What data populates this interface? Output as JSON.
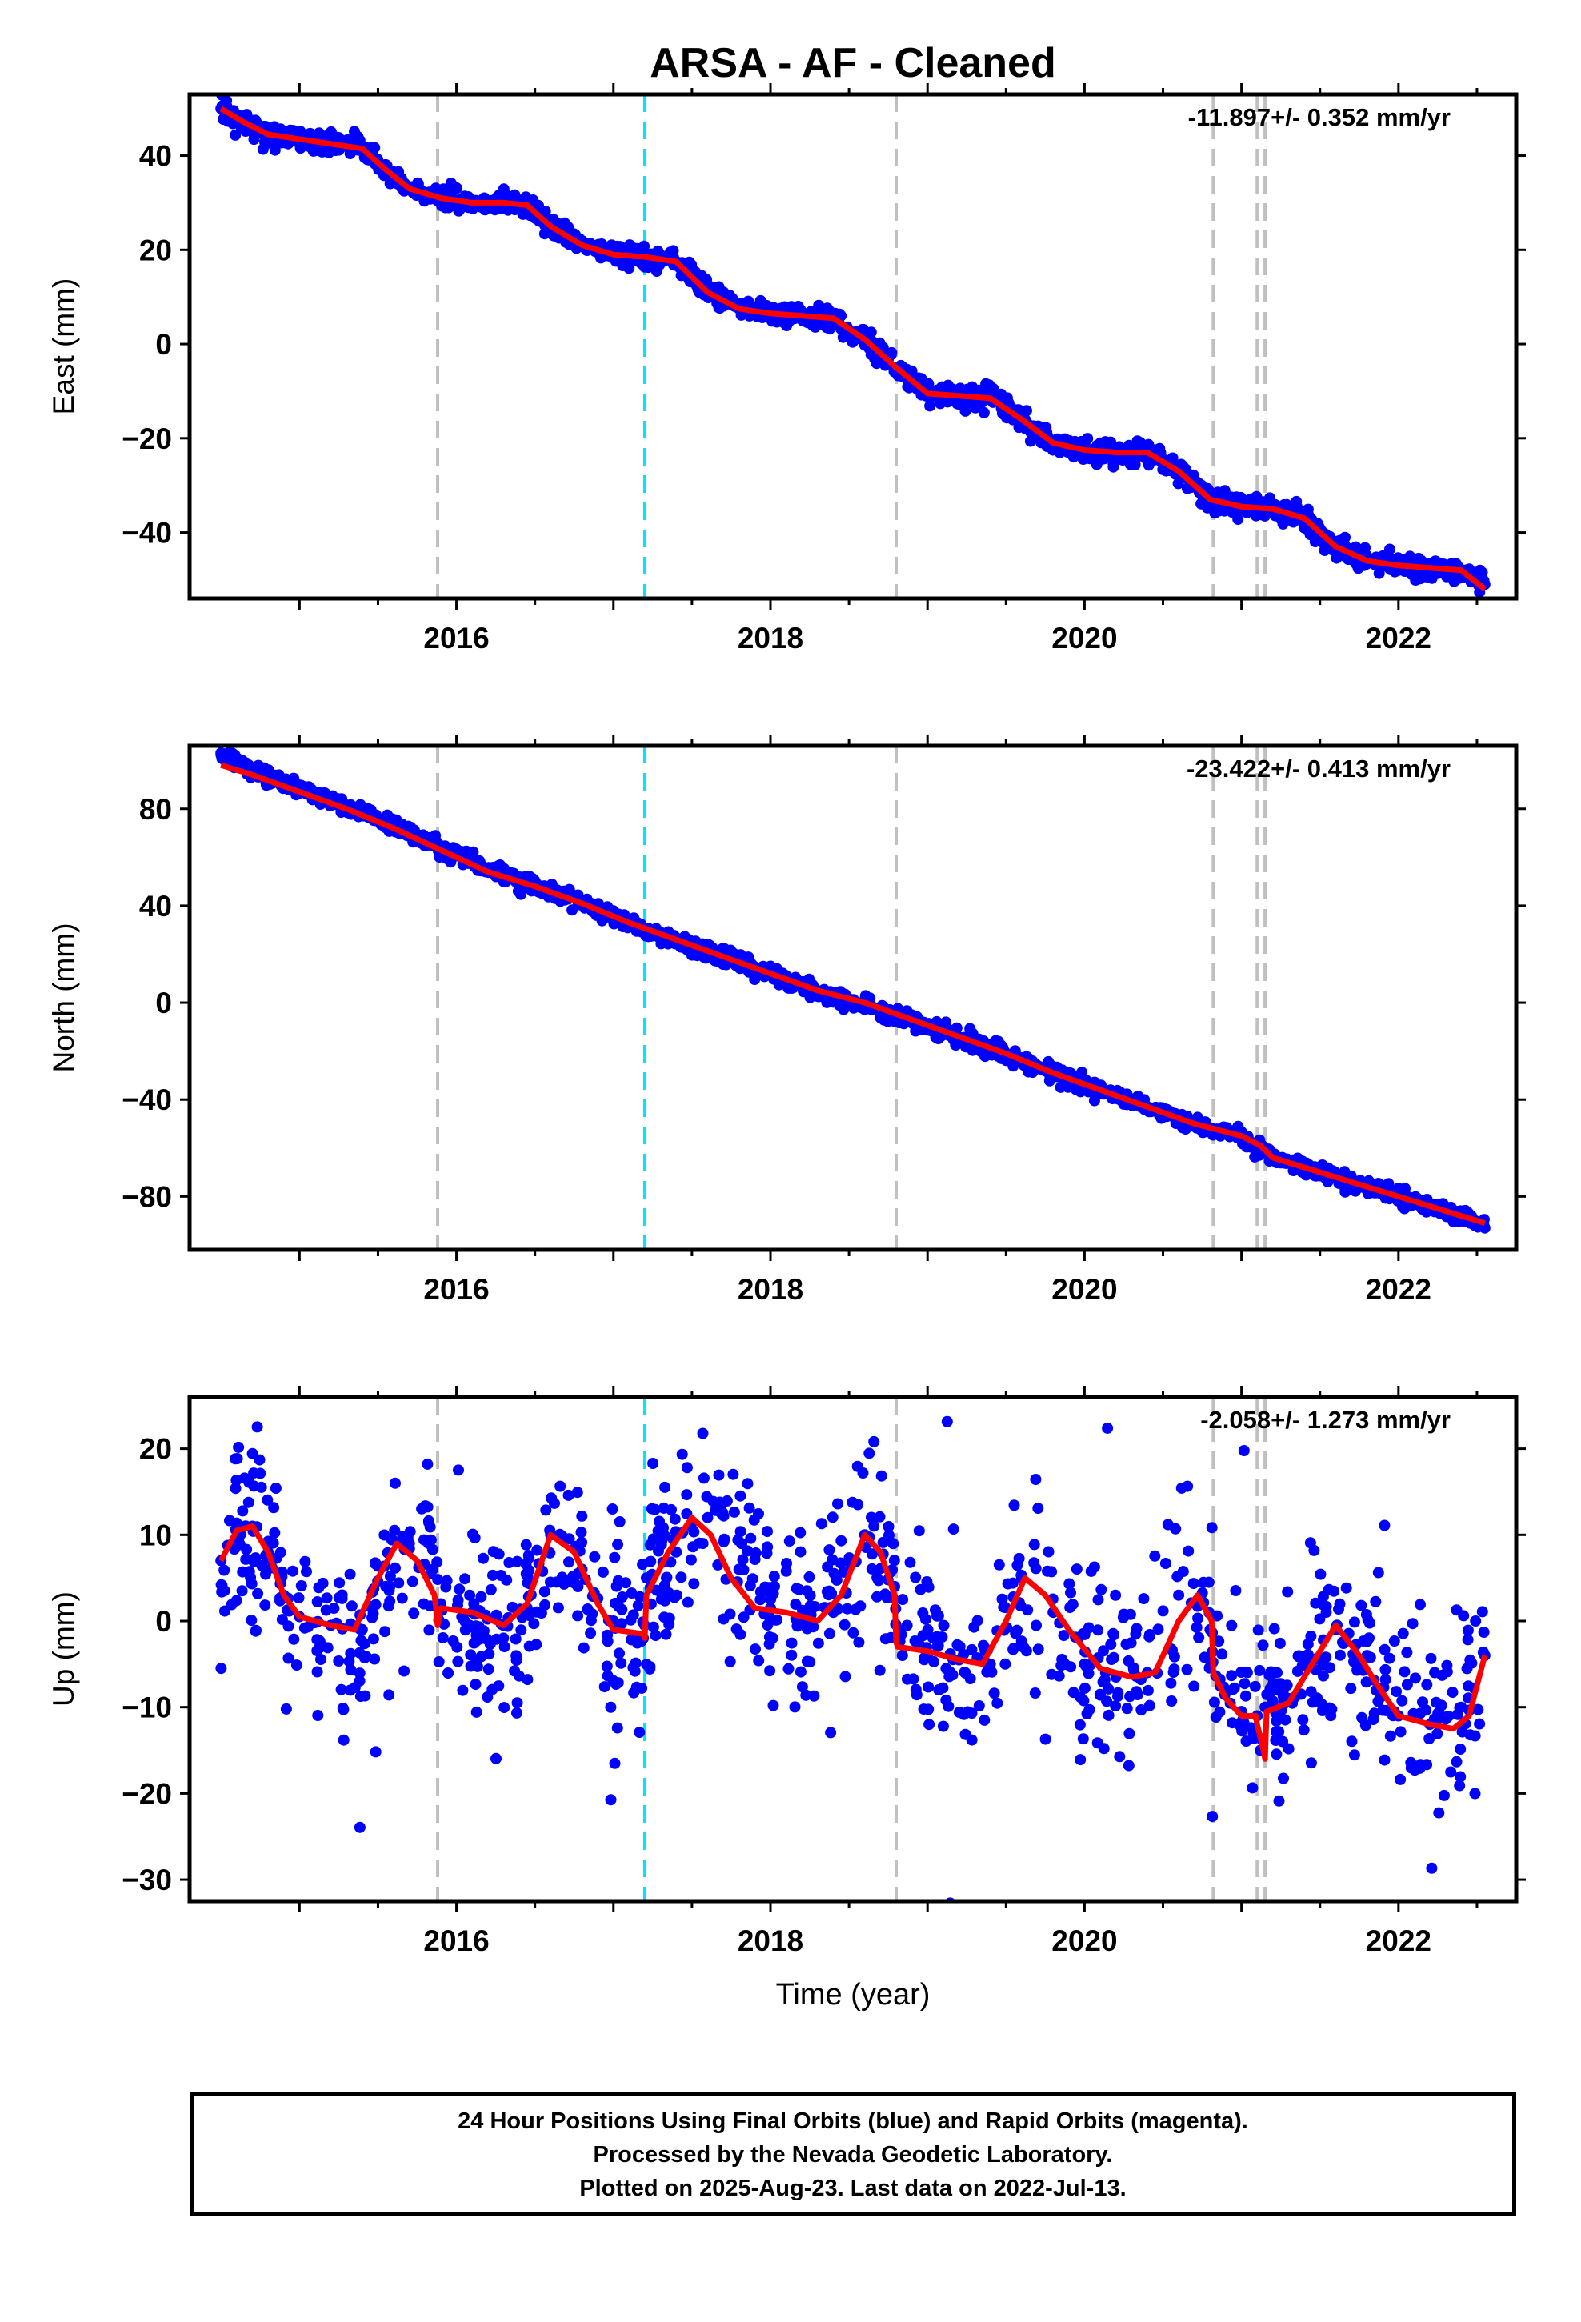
{
  "title": "ARSA  - AF - Cleaned",
  "xlabel": "Time (year)",
  "caption": [
    "24 Hour Positions Using Final Orbits (blue) and Rapid Orbits (magenta).",
    "Processed by the Nevada Geodetic Laboratory.",
    "Plotted on 2025-Aug-23. Last data on 2022-Jul-13."
  ],
  "colors": {
    "points": "#0000ff",
    "fit": "#ff0000",
    "equipment_change": "#c0c0c0",
    "earthquake": "#00e5ff",
    "frame": "#000000"
  },
  "chart_data": [
    {
      "type": "scatter",
      "ylabel": "East (mm)",
      "rate_label": "-11.897+/- 0.352 mm/yr",
      "xlim": [
        2014.3,
        2022.75
      ],
      "ylim": [
        -54,
        53
      ],
      "xticks": [
        2016,
        2018,
        2020,
        2022
      ],
      "yticks": [
        -40,
        -20,
        0,
        20,
        40
      ],
      "ytick_labels": [
        "−40",
        "−20",
        "0",
        "20",
        "40"
      ],
      "grey_lines": [
        2015.88,
        2018.8,
        2020.82,
        2021.1,
        2021.15
      ],
      "cyan_lines": [
        2017.2
      ],
      "series": [
        {
          "kind": "points",
          "x": [
            2014.5,
            2014.65,
            2014.8,
            2015.0,
            2015.2,
            2015.4,
            2015.55,
            2015.7,
            2015.9,
            2016.1,
            2016.3,
            2016.45,
            2016.6,
            2016.8,
            2017.0,
            2017.2,
            2017.4,
            2017.6,
            2017.8,
            2018.0,
            2018.2,
            2018.4,
            2018.6,
            2018.8,
            2019.0,
            2019.2,
            2019.4,
            2019.6,
            2019.8,
            2020.0,
            2020.2,
            2020.4,
            2020.6,
            2020.8,
            2021.0,
            2021.2,
            2021.4,
            2021.6,
            2021.8,
            2022.0,
            2022.2,
            2022.4,
            2022.55
          ],
          "y": [
            50,
            47,
            44.5,
            43.5,
            42.5,
            41.5,
            37,
            33,
            31,
            30,
            30,
            29.5,
            25,
            21,
            19,
            18.5,
            17.5,
            11,
            7.5,
            6.5,
            6,
            5.5,
            1,
            -5,
            -10.5,
            -11,
            -11.5,
            -16,
            -21,
            -22.5,
            -23,
            -23,
            -27,
            -33,
            -34.5,
            -35,
            -37,
            -43,
            -46,
            -47,
            -47.5,
            -48,
            -51
          ]
        },
        {
          "kind": "line",
          "x": [
            2014.5,
            2014.65,
            2014.8,
            2015.0,
            2015.2,
            2015.4,
            2015.55,
            2015.7,
            2015.9,
            2016.1,
            2016.3,
            2016.45,
            2016.6,
            2016.8,
            2017.0,
            2017.2,
            2017.4,
            2017.6,
            2017.8,
            2018.0,
            2018.2,
            2018.4,
            2018.6,
            2018.8,
            2019.0,
            2019.2,
            2019.4,
            2019.6,
            2019.8,
            2020.0,
            2020.2,
            2020.4,
            2020.6,
            2020.8,
            2021.0,
            2021.2,
            2021.4,
            2021.6,
            2021.8,
            2022.0,
            2022.2,
            2022.4,
            2022.55
          ],
          "y": [
            50,
            47,
            44.5,
            43.5,
            42.5,
            41.5,
            37,
            33,
            31,
            30,
            30,
            29.5,
            25,
            21,
            19,
            18.5,
            17.5,
            11,
            7.5,
            6.5,
            6,
            5.5,
            1,
            -5,
            -10.5,
            -11,
            -11.5,
            -16,
            -21,
            -22.5,
            -23,
            -23,
            -27,
            -33,
            -34.5,
            -35,
            -37,
            -43,
            -46,
            -47,
            -47.5,
            -48,
            -52
          ]
        }
      ]
    },
    {
      "type": "scatter",
      "ylabel": "North (mm)",
      "rate_label": "-23.422+/- 0.413 mm/yr",
      "xlim": [
        2014.3,
        2022.75
      ],
      "ylim": [
        -102,
        106
      ],
      "xticks": [
        2016,
        2018,
        2020,
        2022
      ],
      "yticks": [
        -80,
        -40,
        0,
        40,
        80
      ],
      "ytick_labels": [
        "−80",
        "−40",
        "0",
        "40",
        "80"
      ],
      "grey_lines": [
        2015.88,
        2018.8,
        2020.82,
        2021.1,
        2021.15
      ],
      "cyan_lines": [
        2017.2
      ],
      "series": [
        {
          "kind": "points",
          "x": [
            2014.5,
            2014.7,
            2015.0,
            2015.3,
            2015.6,
            2015.9,
            2016.2,
            2016.5,
            2016.8,
            2017.1,
            2017.4,
            2017.7,
            2018.0,
            2018.3,
            2018.6,
            2018.9,
            2019.2,
            2019.5,
            2019.8,
            2020.1,
            2020.4,
            2020.7,
            2021.0,
            2021.2,
            2021.5,
            2021.8,
            2022.1,
            2022.4,
            2022.55
          ],
          "y": [
            103,
            96,
            88,
            81,
            73,
            64,
            55,
            48,
            41,
            33,
            25,
            19,
            12,
            4,
            -1,
            -8,
            -15,
            -21,
            -29,
            -36,
            -43,
            -50,
            -55,
            -64,
            -70,
            -76,
            -82,
            -88,
            -93
          ]
        },
        {
          "kind": "line",
          "x": [
            2014.5,
            2014.7,
            2015.0,
            2015.3,
            2015.6,
            2015.9,
            2016.2,
            2016.5,
            2016.8,
            2017.1,
            2017.4,
            2017.7,
            2018.0,
            2018.3,
            2018.6,
            2018.9,
            2019.2,
            2019.5,
            2019.8,
            2020.1,
            2020.4,
            2020.7,
            2021.0,
            2021.12,
            2021.2,
            2021.5,
            2021.8,
            2022.1,
            2022.4,
            2022.55
          ],
          "y": [
            98,
            94,
            87,
            80,
            72,
            63,
            54,
            48,
            41,
            33,
            26,
            19,
            12,
            5,
            0,
            -7,
            -14,
            -21,
            -29,
            -36,
            -43,
            -50,
            -55,
            -59,
            -64,
            -70,
            -76,
            -82,
            -88,
            -91
          ]
        }
      ]
    },
    {
      "type": "scatter",
      "ylabel": "Up (mm)",
      "rate_label": "-2.058+/- 1.273 mm/yr",
      "xlabel": "Time (year)",
      "xlim": [
        2014.3,
        2022.75
      ],
      "ylim": [
        -32.5,
        26
      ],
      "xticks": [
        2016,
        2018,
        2020,
        2022
      ],
      "yticks": [
        -30,
        -20,
        -10,
        0,
        10,
        20
      ],
      "ytick_labels": [
        "−30",
        "−20",
        "−10",
        "0",
        "10",
        "20"
      ],
      "grey_lines": [
        2015.88,
        2018.8,
        2020.82,
        2021.1,
        2021.15
      ],
      "cyan_lines": [
        2017.2
      ],
      "series": [
        {
          "kind": "points",
          "x": [
            2014.5,
            2014.6,
            2014.7,
            2014.8,
            2014.9,
            2015.0,
            2015.2,
            2015.4,
            2015.55,
            2015.7,
            2015.85,
            2015.9,
            2016.1,
            2016.3,
            2016.45,
            2016.6,
            2016.8,
            2017.0,
            2017.19,
            2017.21,
            2017.4,
            2017.6,
            2017.8,
            2018.0,
            2018.2,
            2018.4,
            2018.6,
            2018.79,
            2018.81,
            2019.0,
            2019.2,
            2019.4,
            2019.6,
            2019.8,
            2020.0,
            2020.2,
            2020.4,
            2020.6,
            2020.8,
            2021.0,
            2021.1,
            2021.12,
            2021.15,
            2021.3,
            2021.6,
            2021.8,
            2022.0,
            2022.2,
            2022.4,
            2022.55
          ],
          "y": [
            7,
            10.5,
            11,
            8,
            3,
            0.5,
            -0.5,
            -1,
            4,
            9,
            6,
            2,
            1,
            -0.5,
            1.5,
            10,
            6,
            0,
            -2,
            5,
            8,
            12,
            6,
            1.5,
            0.5,
            1,
            10,
            4,
            -2,
            -4,
            -4.5,
            -5,
            5,
            1,
            -5,
            -6.5,
            -6,
            3,
            -1,
            -10.5,
            -11,
            -15,
            -10,
            -9,
            -1,
            -4,
            -11,
            -12,
            -10,
            -4
          ]
        },
        {
          "kind": "line",
          "x": [
            2014.5,
            2014.6,
            2014.7,
            2014.8,
            2014.9,
            2015.0,
            2015.2,
            2015.35,
            2015.5,
            2015.62,
            2015.75,
            2015.86,
            2015.88,
            2015.9,
            2016.1,
            2016.3,
            2016.45,
            2016.6,
            2016.75,
            2016.9,
            2017.0,
            2017.19,
            2017.2,
            2017.21,
            2017.35,
            2017.5,
            2017.62,
            2017.75,
            2017.9,
            2018.1,
            2018.3,
            2018.45,
            2018.6,
            2018.7,
            2018.79,
            2018.8,
            2018.81,
            2019.0,
            2019.2,
            2019.35,
            2019.5,
            2019.62,
            2019.75,
            2019.9,
            2020.1,
            2020.3,
            2020.45,
            2020.6,
            2020.72,
            2020.81,
            2020.82,
            2020.9,
            2021.0,
            2021.09,
            2021.1,
            2021.14,
            2021.15,
            2021.16,
            2021.3,
            2021.45,
            2021.6,
            2021.75,
            2021.85,
            2022.0,
            2022.2,
            2022.35,
            2022.45,
            2022.55
          ],
          "y": [
            7,
            10.5,
            11,
            8,
            3,
            0.5,
            -0.5,
            -1,
            5,
            9,
            7,
            3,
            -0.5,
            1.5,
            1,
            -0.5,
            2,
            10,
            8,
            2,
            -1,
            -1.5,
            -2,
            3,
            8,
            12,
            10,
            5,
            1.5,
            1,
            0,
            3,
            10,
            8,
            3,
            -2.5,
            -3,
            -3.5,
            -4.5,
            -5,
            0,
            5,
            3,
            -1,
            -5.5,
            -6.5,
            -6,
            0,
            3,
            0,
            -6,
            -9,
            -11,
            -11,
            -12,
            -15,
            -16,
            -10.5,
            -9.5,
            -5,
            -0.5,
            -4,
            -7,
            -11,
            -12,
            -12.5,
            -11,
            -4
          ]
        }
      ]
    }
  ]
}
